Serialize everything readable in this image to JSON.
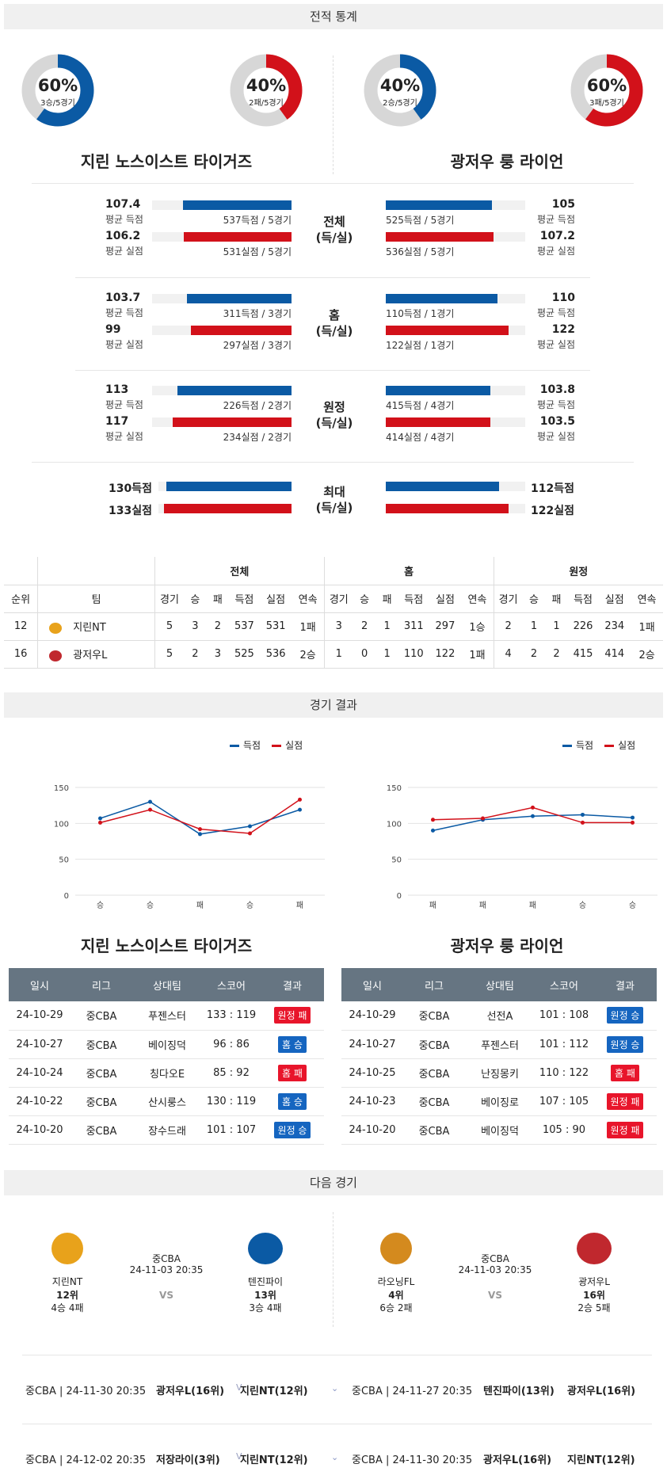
{
  "sections": {
    "record": "전적 통계",
    "results": "경기 결과",
    "next": "다음 경기"
  },
  "donuts": [
    {
      "pct": "60%",
      "sub": "3승/5경기",
      "color": "#0b5aa4",
      "value": 0.6
    },
    {
      "pct": "40%",
      "sub": "2패/5경기",
      "color": "#d2111a",
      "value": 0.4
    },
    {
      "pct": "40%",
      "sub": "2승/5경기",
      "color": "#0b5aa4",
      "value": 0.4
    },
    {
      "pct": "60%",
      "sub": "3패/5경기",
      "color": "#d2111a",
      "value": 0.6
    }
  ],
  "teams": {
    "home": "지린 노스이스트 타이거즈",
    "away": "광저우 룽 라이언"
  },
  "stat_groups": [
    {
      "cat": "전체",
      "cat2": "(득/실)",
      "home": [
        {
          "val": "107.4",
          "lbl": "평균 득점",
          "bar": "537득점 / 5경기",
          "frac": 0.78
        },
        {
          "val": "106.2",
          "lbl": "평균 실점",
          "bar": "531실점 / 5경기",
          "frac": 0.77
        }
      ],
      "away": [
        {
          "val": "105",
          "lbl": "평균 득점",
          "bar": "525득점 / 5경기",
          "frac": 0.76
        },
        {
          "val": "107.2",
          "lbl": "평균 실점",
          "bar": "536실점 / 5경기",
          "frac": 0.77
        }
      ]
    },
    {
      "cat": "홈",
      "cat2": "(득/실)",
      "home": [
        {
          "val": "103.7",
          "lbl": "평균 득점",
          "bar": "311득점 / 3경기",
          "frac": 0.75
        },
        {
          "val": "99",
          "lbl": "평균 실점",
          "bar": "297실점 / 3경기",
          "frac": 0.72
        }
      ],
      "away": [
        {
          "val": "110",
          "lbl": "평균 득점",
          "bar": "110득점 / 1경기",
          "frac": 0.8
        },
        {
          "val": "122",
          "lbl": "평균 실점",
          "bar": "122실점 / 1경기",
          "frac": 0.88
        }
      ]
    },
    {
      "cat": "원정",
      "cat2": "(득/실)",
      "home": [
        {
          "val": "113",
          "lbl": "평균 득점",
          "bar": "226득점 / 2경기",
          "frac": 0.82
        },
        {
          "val": "117",
          "lbl": "평균 실점",
          "bar": "234실점 / 2경기",
          "frac": 0.85
        }
      ],
      "away": [
        {
          "val": "103.8",
          "lbl": "평균 득점",
          "bar": "415득점 / 4경기",
          "frac": 0.75
        },
        {
          "val": "103.5",
          "lbl": "평균 실점",
          "bar": "414실점 / 4경기",
          "frac": 0.75
        }
      ]
    }
  ],
  "max_group": {
    "cat": "최대",
    "cat2": "(득/실)",
    "home": [
      {
        "val": "130득점",
        "frac": 0.94
      },
      {
        "val": "133실점",
        "frac": 0.96
      }
    ],
    "away": [
      {
        "val": "112득점",
        "frac": 0.81
      },
      {
        "val": "122실점",
        "frac": 0.88
      }
    ]
  },
  "standings": {
    "groups": [
      "전체",
      "홈",
      "원정"
    ],
    "headers": [
      "순위",
      "팀",
      "경기",
      "승",
      "패",
      "득점",
      "실점",
      "연속",
      "경기",
      "승",
      "패",
      "득점",
      "실점",
      "연속",
      "경기",
      "승",
      "패",
      "득점",
      "실점",
      "연속"
    ],
    "rows": [
      [
        "12",
        "지린NT",
        "5",
        "3",
        "2",
        "537",
        "531",
        "1패",
        "3",
        "2",
        "1",
        "311",
        "297",
        "1승",
        "2",
        "1",
        "1",
        "226",
        "234",
        "1패"
      ],
      [
        "16",
        "광저우L",
        "5",
        "2",
        "3",
        "525",
        "536",
        "2승",
        "1",
        "0",
        "1",
        "110",
        "122",
        "1패",
        "4",
        "2",
        "2",
        "415",
        "414",
        "2승"
      ]
    ]
  },
  "chart_data": [
    {
      "type": "line",
      "x": [
        "승",
        "승",
        "패",
        "승",
        "패"
      ],
      "ylim": [
        0,
        150
      ],
      "yticks": [
        0,
        50,
        100,
        150
      ],
      "series": [
        {
          "name": "득점",
          "color": "#0b5aa4",
          "values": [
            107,
            130,
            85,
            96,
            119
          ]
        },
        {
          "name": "실점",
          "color": "#d2111a",
          "values": [
            101,
            119,
            92,
            86,
            133
          ]
        }
      ]
    },
    {
      "type": "line",
      "x": [
        "패",
        "패",
        "패",
        "승",
        "승"
      ],
      "ylim": [
        0,
        150
      ],
      "yticks": [
        0,
        50,
        100,
        150
      ],
      "series": [
        {
          "name": "득점",
          "color": "#0b5aa4",
          "values": [
            90,
            105,
            110,
            112,
            108
          ]
        },
        {
          "name": "실점",
          "color": "#d2111a",
          "values": [
            105,
            107,
            122,
            101,
            101
          ]
        }
      ]
    }
  ],
  "results": {
    "headers": [
      "일시",
      "리그",
      "상대팀",
      "스코어",
      "결과"
    ],
    "home": [
      [
        "24-10-29",
        "중CBA",
        "푸젠스터",
        "133 : 119",
        "원정 패",
        "red"
      ],
      [
        "24-10-27",
        "중CBA",
        "베이징덕",
        "96 : 86",
        "홈 승",
        "blue"
      ],
      [
        "24-10-24",
        "중CBA",
        "칭다오E",
        "85 : 92",
        "홈 패",
        "red"
      ],
      [
        "24-10-22",
        "중CBA",
        "산시룽스",
        "130 : 119",
        "홈 승",
        "blue"
      ],
      [
        "24-10-20",
        "중CBA",
        "장수드래",
        "101 : 107",
        "원정 승",
        "blue"
      ]
    ],
    "away": [
      [
        "24-10-29",
        "중CBA",
        "선전A",
        "101 : 108",
        "원정 승",
        "blue"
      ],
      [
        "24-10-27",
        "중CBA",
        "푸젠스터",
        "101 : 112",
        "원정 승",
        "blue"
      ],
      [
        "24-10-25",
        "중CBA",
        "난징몽키",
        "110 : 122",
        "홈 패",
        "red"
      ],
      [
        "24-10-23",
        "중CBA",
        "베이징로",
        "107 : 105",
        "원정 패",
        "red"
      ],
      [
        "24-10-20",
        "중CBA",
        "베이징덕",
        "105 : 90",
        "원정 패",
        "red"
      ]
    ]
  },
  "next_games": [
    {
      "t1": "지린NT",
      "t1rank": "12위",
      "t1rec": "4승 4패",
      "league": "중CBA",
      "date": "24-11-03 20:35",
      "vs": "VS",
      "t2": "텐진파이",
      "t2rank": "13위",
      "t2rec": "3승 4패"
    },
    {
      "t1": "라오닝FL",
      "t1rank": "4위",
      "t1rec": "6승 2패",
      "league": "중CBA",
      "date": "24-11-03 20:35",
      "vs": "VS",
      "t2": "광저우L",
      "t2rank": "16위",
      "t2rec": "2승 5패"
    }
  ],
  "future": [
    {
      "left_info": "중CBA | 24-11-30 20:35",
      "left_a": "광저우L(16위)",
      "left_b": "지린NT(12위)",
      "right_info": "중CBA | 24-11-27 20:35",
      "right_a": "텐진파이(13위)",
      "right_b": "광저우L(16위)"
    },
    {
      "left_info": "중CBA | 24-12-02 20:35",
      "left_a": "저장라이(3위)",
      "left_b": "지린NT(12위)",
      "right_info": "중CBA | 24-11-30 20:35",
      "right_a": "광저우L(16위)",
      "right_b": "지린NT(12위)"
    }
  ]
}
